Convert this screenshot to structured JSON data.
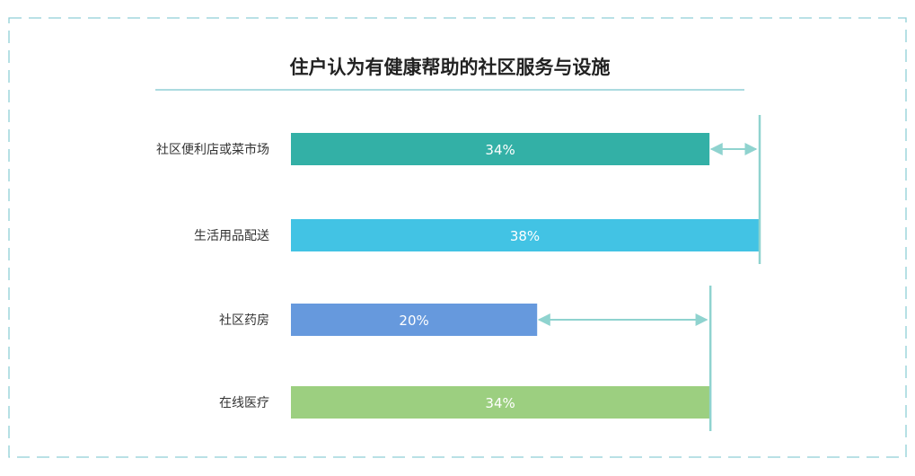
{
  "chart_data": {
    "type": "bar",
    "orientation": "horizontal",
    "title": "住户认为有健康帮助的社区服务与设施",
    "categories": [
      "社区便利店或菜市场",
      "生活用品配送",
      "社区药房",
      "在线医疗"
    ],
    "values": [
      34,
      38,
      20,
      34
    ],
    "value_labels": [
      "34%",
      "38%",
      "20%",
      "34%"
    ],
    "unit": "%",
    "xlim": [
      0,
      38
    ],
    "bar_colors": [
      "#33b0a6",
      "#42c3e4",
      "#6699dd",
      "#9ccf80"
    ],
    "comparisons": [
      {
        "from_category": "社区便利店或菜市场",
        "to_category": "生活用品配送",
        "from_value": 34,
        "to_value": 38
      },
      {
        "from_category": "社区药房",
        "to_category": "在线医疗",
        "from_value": 20,
        "to_value": 34
      }
    ],
    "accent_color": "#8fd3cf",
    "border_color": "#8fcfd6",
    "grid": false,
    "legend": "none"
  }
}
